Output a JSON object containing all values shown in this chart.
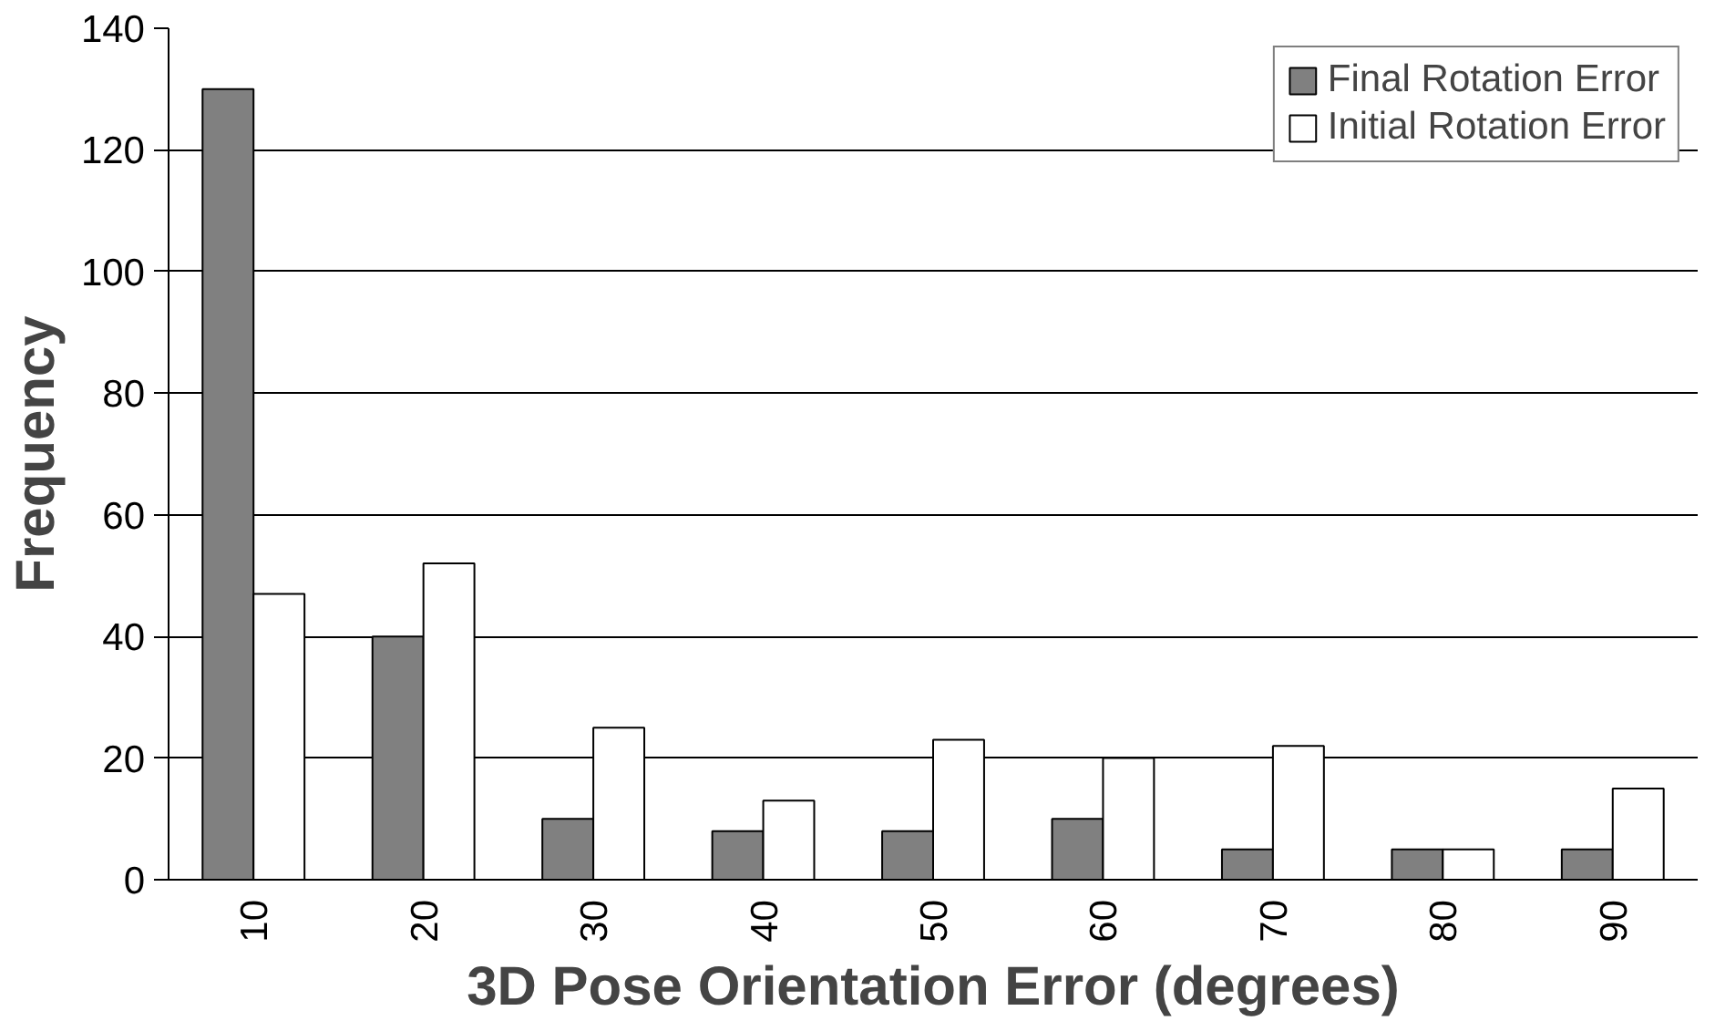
{
  "chart_data": {
    "type": "bar",
    "xlabel": "3D Pose Orientation Error (degrees)",
    "ylabel": "Frequency",
    "categories": [
      "10",
      "20",
      "30",
      "40",
      "50",
      "60",
      "70",
      "80",
      "90"
    ],
    "series": [
      {
        "name": "Final Rotation Error",
        "color": "#808080",
        "values": [
          130,
          40,
          10,
          8,
          8,
          10,
          5,
          5,
          5
        ]
      },
      {
        "name": "Initial Rotation Error",
        "color": "#ffffff",
        "values": [
          47,
          52,
          25,
          13,
          23,
          20,
          22,
          5,
          15
        ]
      }
    ],
    "ylim": [
      0,
      140
    ],
    "yticks": [
      0,
      20,
      40,
      60,
      80,
      100,
      120,
      140
    ],
    "grid": "y",
    "legend": "top right"
  }
}
